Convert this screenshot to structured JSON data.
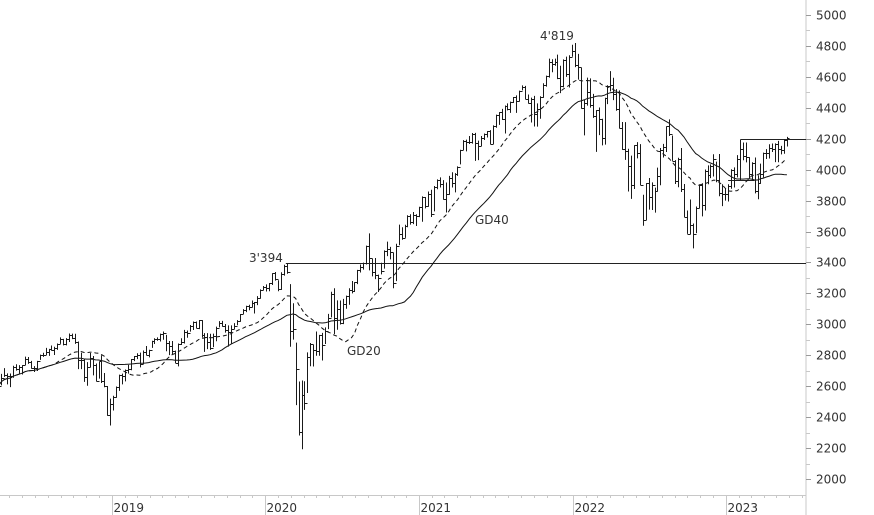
{
  "chart_data": {
    "type": "ohlc-bar",
    "interval": "weekly",
    "first_week": "2018-04-06",
    "ylim": [
      2000,
      5000
    ],
    "yticks": [
      2000,
      2200,
      2400,
      2600,
      2800,
      3000,
      3200,
      3400,
      3600,
      3800,
      4000,
      4200,
      4400,
      4600,
      4800,
      5000
    ],
    "xticks": [
      "2019",
      "2020",
      "2021",
      "2022",
      "2023"
    ],
    "grid": false,
    "bar_format": [
      "high",
      "low",
      "close"
    ],
    "bars": [
      [
        2680,
        2586,
        2604
      ],
      [
        2680,
        2605,
        2656
      ],
      [
        2717,
        2660,
        2670
      ],
      [
        2683,
        2612,
        2669
      ],
      [
        2682,
        2594,
        2663
      ],
      [
        2732,
        2655,
        2727
      ],
      [
        2742,
        2701,
        2712
      ],
      [
        2736,
        2676,
        2721
      ],
      [
        2736,
        2676,
        2734
      ],
      [
        2791,
        2736,
        2779
      ],
      [
        2789,
        2744,
        2754
      ],
      [
        2764,
        2714,
        2718
      ],
      [
        2730,
        2692,
        2718
      ],
      [
        2764,
        2698,
        2760
      ],
      [
        2804,
        2770,
        2801
      ],
      [
        2816,
        2790,
        2802
      ],
      [
        2848,
        2802,
        2818
      ],
      [
        2841,
        2796,
        2840
      ],
      [
        2863,
        2830,
        2833
      ],
      [
        2855,
        2802,
        2850
      ],
      [
        2876,
        2835,
        2874
      ],
      [
        2916,
        2874,
        2902
      ],
      [
        2906,
        2864,
        2872
      ],
      [
        2911,
        2864,
        2905
      ],
      [
        2941,
        2886,
        2930
      ],
      [
        2940,
        2904,
        2914
      ],
      [
        2939,
        2874,
        2885
      ],
      [
        2889,
        2710,
        2767
      ],
      [
        2816,
        2710,
        2768
      ],
      [
        2779,
        2628,
        2658
      ],
      [
        2756,
        2603,
        2723
      ],
      [
        2815,
        2722,
        2781
      ],
      [
        2795,
        2670,
        2736
      ],
      [
        2747,
        2631,
        2633
      ],
      [
        2760,
        2649,
        2760
      ],
      [
        2800,
        2621,
        2633
      ],
      [
        2685,
        2593,
        2600
      ],
      [
        2601,
        2409,
        2416
      ],
      [
        2520,
        2346,
        2486
      ],
      [
        2538,
        2443,
        2532
      ],
      [
        2598,
        2525,
        2596
      ],
      [
        2675,
        2570,
        2671
      ],
      [
        2681,
        2612,
        2665
      ],
      [
        2708,
        2631,
        2707
      ],
      [
        2738,
        2681,
        2708
      ],
      [
        2776,
        2703,
        2776
      ],
      [
        2795,
        2762,
        2793
      ],
      [
        2813,
        2775,
        2803
      ],
      [
        2817,
        2722,
        2743
      ],
      [
        2831,
        2743,
        2822
      ],
      [
        2860,
        2800,
        2801
      ],
      [
        2836,
        2786,
        2834
      ],
      [
        2894,
        2848,
        2893
      ],
      [
        2910,
        2873,
        2907
      ],
      [
        2916,
        2894,
        2905
      ],
      [
        2940,
        2889,
        2940
      ],
      [
        2954,
        2900,
        2946
      ],
      [
        2932,
        2826,
        2881
      ],
      [
        2892,
        2801,
        2860
      ],
      [
        2892,
        2805,
        2826
      ],
      [
        2830,
        2750,
        2752
      ],
      [
        2876,
        2728,
        2873
      ],
      [
        2910,
        2866,
        2887
      ],
      [
        2964,
        2876,
        2950
      ],
      [
        2960,
        2913,
        2942
      ],
      [
        2996,
        2953,
        2990
      ],
      [
        3018,
        2963,
        3014
      ],
      [
        3018,
        2975,
        2977
      ],
      [
        3028,
        2969,
        3026
      ],
      [
        3027,
        2914,
        2932
      ],
      [
        2943,
        2822,
        2919
      ],
      [
        2943,
        2840,
        2889
      ],
      [
        2939,
        2835,
        2847
      ],
      [
        2940,
        2853,
        2926
      ],
      [
        2985,
        2891,
        2979
      ],
      [
        3021,
        2980,
        3007
      ],
      [
        3022,
        2985,
        2992
      ],
      [
        3002,
        2946,
        2962
      ],
      [
        2993,
        2856,
        2952
      ],
      [
        2993,
        2874,
        2970
      ],
      [
        3008,
        2968,
        2986
      ],
      [
        3027,
        2994,
        3023
      ],
      [
        3067,
        3017,
        3067
      ],
      [
        3098,
        3066,
        3093
      ],
      [
        3120,
        3079,
        3120
      ],
      [
        3127,
        3091,
        3110
      ],
      [
        3154,
        3110,
        3141
      ],
      [
        3144,
        3070,
        3146
      ],
      [
        3182,
        3124,
        3169
      ],
      [
        3226,
        3166,
        3221
      ],
      [
        3248,
        3220,
        3240
      ],
      [
        3258,
        3212,
        3235
      ],
      [
        3267,
        3214,
        3265
      ],
      [
        3330,
        3254,
        3330
      ],
      [
        3338,
        3283,
        3295
      ],
      [
        3285,
        3214,
        3226
      ],
      [
        3337,
        3223,
        3328
      ],
      [
        3385,
        3315,
        3380
      ],
      [
        3394,
        3327,
        3338
      ],
      [
        3260,
        2855,
        2954
      ],
      [
        3136,
        2901,
        2972
      ],
      [
        2882,
        2478,
        2711
      ],
      [
        2630,
        2281,
        2305
      ],
      [
        2637,
        2192,
        2541
      ],
      [
        2632,
        2447,
        2489
      ],
      [
        2819,
        2556,
        2790
      ],
      [
        2879,
        2729,
        2875
      ],
      [
        2869,
        2727,
        2837
      ],
      [
        2954,
        2797,
        2830
      ],
      [
        2932,
        2797,
        2930
      ],
      [
        2945,
        2766,
        2864
      ],
      [
        2980,
        2873,
        2955
      ],
      [
        3068,
        2969,
        3044
      ],
      [
        3211,
        3045,
        3194
      ],
      [
        3233,
        2936,
        3041
      ],
      [
        3155,
        2965,
        3098
      ],
      [
        3154,
        2999,
        3009
      ],
      [
        3165,
        3001,
        3130
      ],
      [
        3186,
        3101,
        3185
      ],
      [
        3233,
        3127,
        3225
      ],
      [
        3280,
        3200,
        3216
      ],
      [
        3272,
        3209,
        3271
      ],
      [
        3352,
        3260,
        3351
      ],
      [
        3387,
        3335,
        3373
      ],
      [
        3399,
        3354,
        3397
      ],
      [
        3509,
        3387,
        3508
      ],
      [
        3588,
        3349,
        3427
      ],
      [
        3425,
        3310,
        3341
      ],
      [
        3429,
        3292,
        3319
      ],
      [
        3321,
        3209,
        3298
      ],
      [
        3398,
        3323,
        3348
      ],
      [
        3478,
        3360,
        3477
      ],
      [
        3535,
        3441,
        3484
      ],
      [
        3501,
        3420,
        3465
      ],
      [
        3464,
        3233,
        3270
      ],
      [
        3521,
        3279,
        3509
      ],
      [
        3645,
        3511,
        3585
      ],
      [
        3628,
        3547,
        3558
      ],
      [
        3644,
        3559,
        3638
      ],
      [
        3705,
        3628,
        3699
      ],
      [
        3712,
        3645,
        3663
      ],
      [
        3726,
        3648,
        3709
      ],
      [
        3712,
        3636,
        3703
      ],
      [
        3760,
        3693,
        3756
      ],
      [
        3827,
        3663,
        3825
      ],
      [
        3823,
        3750,
        3768
      ],
      [
        3859,
        3760,
        3841
      ],
      [
        3870,
        3694,
        3714
      ],
      [
        3894,
        3730,
        3887
      ],
      [
        3937,
        3873,
        3935
      ],
      [
        3950,
        3885,
        3907
      ],
      [
        3932,
        3806,
        3811
      ],
      [
        3917,
        3723,
        3842
      ],
      [
        3960,
        3838,
        3943
      ],
      [
        3983,
        3885,
        3913
      ],
      [
        3978,
        3853,
        3975
      ],
      [
        4021,
        3960,
        4020
      ],
      [
        4129,
        4034,
        4129
      ],
      [
        4191,
        4126,
        4185
      ],
      [
        4194,
        4118,
        4180
      ],
      [
        4218,
        4166,
        4181
      ],
      [
        4237,
        4168,
        4232
      ],
      [
        4238,
        4057,
        4174
      ],
      [
        4188,
        4062,
        4156
      ],
      [
        4218,
        4152,
        4204
      ],
      [
        4234,
        4192,
        4230
      ],
      [
        4249,
        4208,
        4247
      ],
      [
        4256,
        4164,
        4166
      ],
      [
        4286,
        4165,
        4281
      ],
      [
        4356,
        4271,
        4352
      ],
      [
        4372,
        4290,
        4370
      ],
      [
        4393,
        4321,
        4327
      ],
      [
        4415,
        4234,
        4411
      ],
      [
        4429,
        4383,
        4395
      ],
      [
        4440,
        4367,
        4437
      ],
      [
        4470,
        4431,
        4468
      ],
      [
        4480,
        4367,
        4442
      ],
      [
        4511,
        4441,
        4509
      ],
      [
        4545,
        4513,
        4535
      ],
      [
        4542,
        4456,
        4459
      ],
      [
        4486,
        4428,
        4433
      ],
      [
        4466,
        4305,
        4455
      ],
      [
        4477,
        4279,
        4357
      ],
      [
        4429,
        4278,
        4391
      ],
      [
        4475,
        4329,
        4471
      ],
      [
        4559,
        4465,
        4545
      ],
      [
        4608,
        4537,
        4605
      ],
      [
        4718,
        4595,
        4697
      ],
      [
        4714,
        4630,
        4683
      ],
      [
        4718,
        4672,
        4698
      ],
      [
        4744,
        4585,
        4595
      ],
      [
        4672,
        4495,
        4538
      ],
      [
        4713,
        4532,
        4712
      ],
      [
        4731,
        4600,
        4620
      ],
      [
        4740,
        4531,
        4726
      ],
      [
        4808,
        4730,
        4766
      ],
      [
        4819,
        4663,
        4677
      ],
      [
        4749,
        4582,
        4663
      ],
      [
        4660,
        4395,
        4398
      ],
      [
        4453,
        4222,
        4432
      ],
      [
        4595,
        4414,
        4501
      ],
      [
        4590,
        4401,
        4419
      ],
      [
        4490,
        4335,
        4349
      ],
      [
        4385,
        4115,
        4385
      ],
      [
        4402,
        4223,
        4329
      ],
      [
        4329,
        4157,
        4204
      ],
      [
        4465,
        4162,
        4463
      ],
      [
        4546,
        4424,
        4543
      ],
      [
        4637,
        4506,
        4546
      ],
      [
        4594,
        4450,
        4488
      ],
      [
        4521,
        4381,
        4393
      ],
      [
        4513,
        4267,
        4272
      ],
      [
        4308,
        4128,
        4132
      ],
      [
        4307,
        4063,
        4123
      ],
      [
        4135,
        3859,
        4024
      ],
      [
        4091,
        3811,
        3901
      ],
      [
        4158,
        3875,
        4158
      ],
      [
        4178,
        4073,
        4109
      ],
      [
        4165,
        3900,
        3901
      ],
      [
        3838,
        3637,
        3675
      ],
      [
        3913,
        3674,
        3912
      ],
      [
        3946,
        3742,
        3825
      ],
      [
        3918,
        3739,
        3899
      ],
      [
        3884,
        3722,
        3863
      ],
      [
        4013,
        3858,
        3962
      ],
      [
        4140,
        3899,
        4130
      ],
      [
        4167,
        4079,
        4145
      ],
      [
        4280,
        4114,
        4280
      ],
      [
        4325,
        4218,
        4228
      ],
      [
        4221,
        4057,
        4058
      ],
      [
        4062,
        3907,
        3924
      ],
      [
        4077,
        3886,
        4067
      ],
      [
        4140,
        3856,
        3873
      ],
      [
        3907,
        3693,
        3693
      ],
      [
        3736,
        3585,
        3586
      ],
      [
        3807,
        3582,
        3640
      ],
      [
        3652,
        3491,
        3583
      ],
      [
        3762,
        3590,
        3753
      ],
      [
        3906,
        3750,
        3901
      ],
      [
        3912,
        3698,
        3771
      ],
      [
        4001,
        3736,
        3993
      ],
      [
        4028,
        3906,
        3965
      ],
      [
        4034,
        3945,
        4026
      ],
      [
        4100,
        3956,
        4072
      ],
      [
        4052,
        3919,
        3934
      ],
      [
        4101,
        3828,
        3852
      ],
      [
        3906,
        3764,
        3845
      ],
      [
        3878,
        3800,
        3840
      ],
      [
        3906,
        3794,
        3895
      ],
      [
        4003,
        3877,
        3999
      ],
      [
        4015,
        3885,
        3973
      ],
      [
        4094,
        3950,
        4071
      ],
      [
        4195,
        4015,
        4136
      ],
      [
        4176,
        4061,
        4090
      ],
      [
        4176,
        4047,
        4079
      ],
      [
        4080,
        3944,
        3970
      ],
      [
        4048,
        3928,
        4046
      ],
      [
        4079,
        3847,
        3862
      ],
      [
        3964,
        3809,
        3917
      ],
      [
        4039,
        3908,
        3971
      ],
      [
        4110,
        3949,
        4109
      ],
      [
        4133,
        4069,
        4105
      ],
      [
        4164,
        4072,
        4138
      ],
      [
        4169,
        4114,
        4133
      ],
      [
        4170,
        4049,
        4169
      ],
      [
        4186,
        4048,
        4136
      ],
      [
        4154,
        4099,
        4124
      ],
      [
        4198,
        4103,
        4192
      ],
      [
        4212,
        4150,
        4205
      ]
    ],
    "moving_averages": [
      {
        "name": "GD20",
        "period_weeks": 20,
        "style": "dashed"
      },
      {
        "name": "GD40",
        "period_weeks": 40,
        "style": "solid"
      }
    ],
    "annotations": {
      "high_2020": {
        "label": "3'394",
        "value": 3394,
        "from": "2020-02-21"
      },
      "high_2022": {
        "label": "4'819",
        "value": 4819
      },
      "range_top": {
        "value": 4200,
        "from": "2023-02-03"
      },
      "range_bottom": {
        "value": 3935,
        "from": "2023-01-06",
        "to": "2023-03-10"
      }
    },
    "colors": {
      "bars": "#1a1a1a",
      "axis": "#c8c8c8",
      "labels": "#333333"
    }
  }
}
